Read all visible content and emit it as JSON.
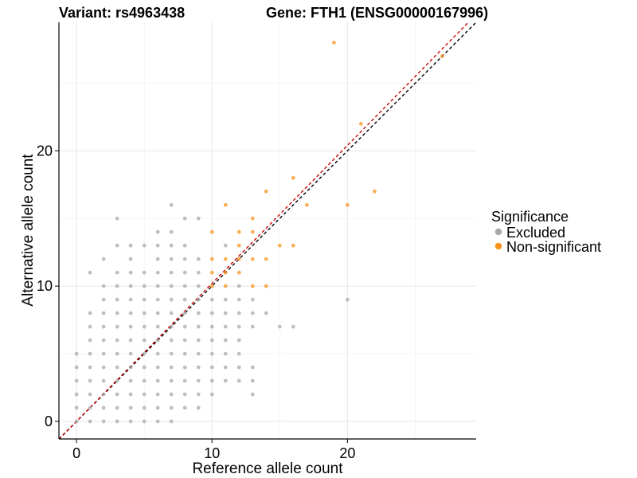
{
  "chart_data": {
    "type": "scatter",
    "titles": {
      "variant": "Variant: rs4963438",
      "gene": "Gene: FTH1 (ENSG00000167996)"
    },
    "xlabel": "Reference allele count",
    "ylabel": "Alternative allele count",
    "xlim": [
      -1.3,
      29.5
    ],
    "ylim": [
      -1.3,
      29.5
    ],
    "xticks": [
      0,
      10,
      20
    ],
    "yticks": [
      0,
      10,
      20
    ],
    "grid": true,
    "legend": {
      "title": "Significance",
      "position": "right",
      "entries": [
        {
          "label": "Excluded",
          "color": "#A9A9A9"
        },
        {
          "label": "Non-significant",
          "color": "#F7941D"
        }
      ]
    },
    "reference_lines": [
      {
        "kind": "identity",
        "slope": 1,
        "intercept": 0,
        "color": "#000000",
        "dash": true
      },
      {
        "kind": "fit",
        "slope": 1.02,
        "intercept": 0,
        "color": "#CC0000",
        "dash": true
      }
    ],
    "series": [
      {
        "name": "Excluded",
        "color": "#A9A9A9",
        "points": [
          [
            0,
            0
          ],
          [
            0,
            1
          ],
          [
            0,
            2
          ],
          [
            0,
            3
          ],
          [
            0,
            4
          ],
          [
            0,
            5
          ],
          [
            1,
            0
          ],
          [
            1,
            1
          ],
          [
            1,
            2
          ],
          [
            1,
            3
          ],
          [
            1,
            4
          ],
          [
            1,
            5
          ],
          [
            1,
            6
          ],
          [
            1,
            7
          ],
          [
            1,
            8
          ],
          [
            1,
            11
          ],
          [
            2,
            0
          ],
          [
            2,
            1
          ],
          [
            2,
            2
          ],
          [
            2,
            3
          ],
          [
            2,
            4
          ],
          [
            2,
            5
          ],
          [
            2,
            6
          ],
          [
            2,
            7
          ],
          [
            2,
            8
          ],
          [
            2,
            9
          ],
          [
            2,
            10
          ],
          [
            2,
            12
          ],
          [
            3,
            0
          ],
          [
            3,
            1
          ],
          [
            3,
            2
          ],
          [
            3,
            3
          ],
          [
            3,
            4
          ],
          [
            3,
            5
          ],
          [
            3,
            6
          ],
          [
            3,
            7
          ],
          [
            3,
            8
          ],
          [
            3,
            9
          ],
          [
            3,
            10
          ],
          [
            3,
            11
          ],
          [
            3,
            13
          ],
          [
            3,
            15
          ],
          [
            4,
            0
          ],
          [
            4,
            1
          ],
          [
            4,
            2
          ],
          [
            4,
            3
          ],
          [
            4,
            4
          ],
          [
            4,
            5
          ],
          [
            4,
            6
          ],
          [
            4,
            7
          ],
          [
            4,
            8
          ],
          [
            4,
            9
          ],
          [
            4,
            10
          ],
          [
            4,
            11
          ],
          [
            4,
            12
          ],
          [
            4,
            13
          ],
          [
            5,
            0
          ],
          [
            5,
            1
          ],
          [
            5,
            2
          ],
          [
            5,
            3
          ],
          [
            5,
            4
          ],
          [
            5,
            5
          ],
          [
            5,
            6
          ],
          [
            5,
            7
          ],
          [
            5,
            8
          ],
          [
            5,
            9
          ],
          [
            5,
            10
          ],
          [
            5,
            11
          ],
          [
            5,
            13
          ],
          [
            6,
            0
          ],
          [
            6,
            1
          ],
          [
            6,
            2
          ],
          [
            6,
            3
          ],
          [
            6,
            4
          ],
          [
            6,
            5
          ],
          [
            6,
            6
          ],
          [
            6,
            7
          ],
          [
            6,
            8
          ],
          [
            6,
            9
          ],
          [
            6,
            10
          ],
          [
            6,
            11
          ],
          [
            6,
            12
          ],
          [
            6,
            13
          ],
          [
            6,
            14
          ],
          [
            7,
            0
          ],
          [
            7,
            1
          ],
          [
            7,
            2
          ],
          [
            7,
            3
          ],
          [
            7,
            4
          ],
          [
            7,
            5
          ],
          [
            7,
            6
          ],
          [
            7,
            7
          ],
          [
            7,
            8
          ],
          [
            7,
            9
          ],
          [
            7,
            10
          ],
          [
            7,
            11
          ],
          [
            7,
            12
          ],
          [
            7,
            13
          ],
          [
            7,
            14
          ],
          [
            7,
            16
          ],
          [
            8,
            1
          ],
          [
            8,
            2
          ],
          [
            8,
            3
          ],
          [
            8,
            4
          ],
          [
            8,
            5
          ],
          [
            8,
            6
          ],
          [
            8,
            7
          ],
          [
            8,
            8
          ],
          [
            8,
            9
          ],
          [
            8,
            10
          ],
          [
            8,
            11
          ],
          [
            8,
            12
          ],
          [
            8,
            13
          ],
          [
            8,
            15
          ],
          [
            9,
            1
          ],
          [
            9,
            2
          ],
          [
            9,
            3
          ],
          [
            9,
            4
          ],
          [
            9,
            5
          ],
          [
            9,
            6
          ],
          [
            9,
            7
          ],
          [
            9,
            8
          ],
          [
            9,
            9
          ],
          [
            9,
            10
          ],
          [
            9,
            11
          ],
          [
            9,
            12
          ],
          [
            9,
            15
          ],
          [
            10,
            2
          ],
          [
            10,
            3
          ],
          [
            10,
            4
          ],
          [
            10,
            5
          ],
          [
            10,
            6
          ],
          [
            10,
            7
          ],
          [
            10,
            8
          ],
          [
            10,
            9
          ],
          [
            11,
            3
          ],
          [
            11,
            4
          ],
          [
            11,
            5
          ],
          [
            11,
            6
          ],
          [
            11,
            7
          ],
          [
            11,
            8
          ],
          [
            11,
            9
          ],
          [
            11,
            13
          ],
          [
            12,
            3
          ],
          [
            12,
            4
          ],
          [
            12,
            5
          ],
          [
            12,
            6
          ],
          [
            12,
            7
          ],
          [
            12,
            8
          ],
          [
            12,
            9
          ],
          [
            12,
            10
          ],
          [
            13,
            2
          ],
          [
            13,
            3
          ],
          [
            13,
            4
          ],
          [
            13,
            7
          ],
          [
            13,
            8
          ],
          [
            13,
            9
          ],
          [
            14,
            8
          ],
          [
            15,
            7
          ],
          [
            16,
            7
          ],
          [
            20,
            9
          ]
        ]
      },
      {
        "name": "Non-significant",
        "color": "#F7941D",
        "points": [
          [
            10,
            10
          ],
          [
            10,
            11
          ],
          [
            10,
            12
          ],
          [
            10,
            14
          ],
          [
            11,
            10
          ],
          [
            11,
            11
          ],
          [
            11,
            12
          ],
          [
            11,
            16
          ],
          [
            12,
            11
          ],
          [
            12,
            12
          ],
          [
            12,
            13
          ],
          [
            12,
            14
          ],
          [
            13,
            10
          ],
          [
            13,
            12
          ],
          [
            13,
            14
          ],
          [
            13,
            15
          ],
          [
            14,
            10
          ],
          [
            14,
            12
          ],
          [
            14,
            17
          ],
          [
            15,
            13
          ],
          [
            16,
            13
          ],
          [
            16,
            18
          ],
          [
            17,
            16
          ],
          [
            19,
            28
          ],
          [
            20,
            16
          ],
          [
            21,
            22
          ],
          [
            22,
            17
          ],
          [
            27,
            27
          ]
        ]
      }
    ]
  }
}
